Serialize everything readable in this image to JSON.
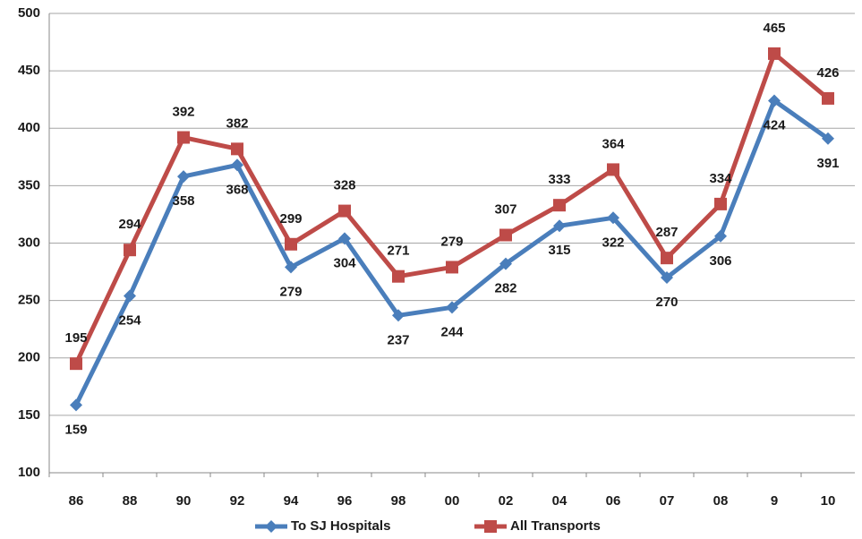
{
  "chart_data": {
    "type": "line",
    "categories": [
      "86",
      "88",
      "90",
      "92",
      "94",
      "96",
      "98",
      "00",
      "02",
      "04",
      "06",
      "07",
      "08",
      "9",
      "10"
    ],
    "series": [
      {
        "name": "To SJ Hospitals",
        "color": "#4a7ebb",
        "values": [
          159,
          254,
          358,
          368,
          279,
          304,
          237,
          244,
          282,
          315,
          322,
          270,
          306,
          424,
          391
        ]
      },
      {
        "name": "All Transports",
        "color": "#be4b48",
        "values": [
          195,
          294,
          392,
          382,
          299,
          328,
          271,
          279,
          307,
          333,
          364,
          287,
          334,
          465,
          426
        ]
      }
    ],
    "ylim": [
      100,
      500
    ],
    "yticks": [
      100,
      150,
      200,
      250,
      300,
      350,
      400,
      450,
      500
    ],
    "grid": true,
    "legend": "bottom"
  }
}
